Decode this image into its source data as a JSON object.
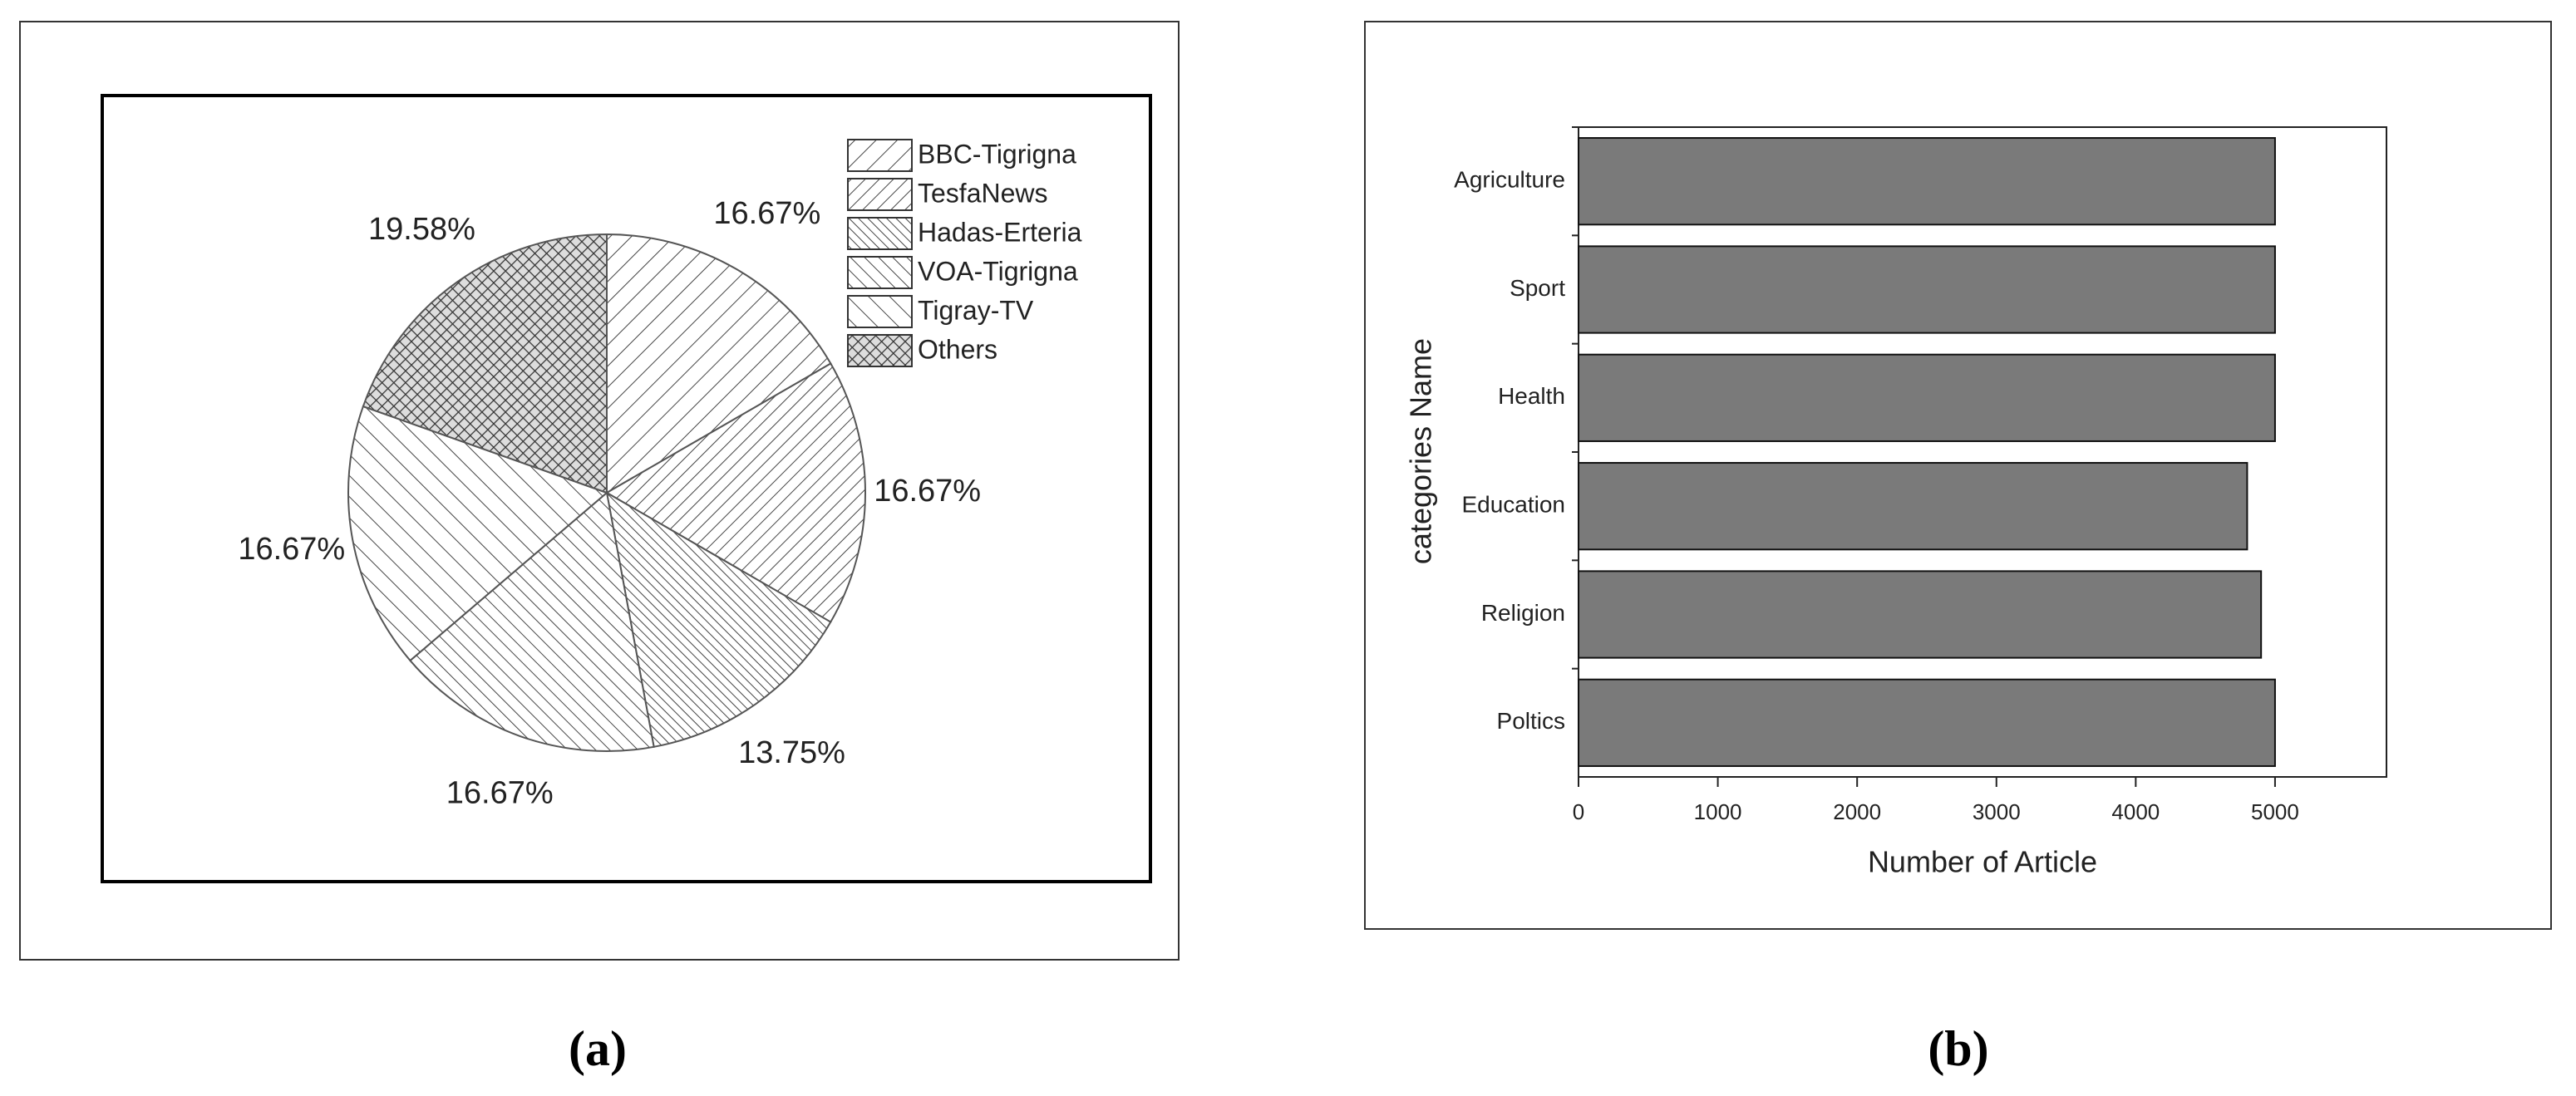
{
  "chart_data": [
    {
      "type": "pie",
      "caption": "(a)",
      "labels": [
        "BBC-Tigrigna",
        "TesfaNews",
        "Hadas-Erteria",
        "VOA-Tigrigna",
        "Tigray-TV",
        "Others"
      ],
      "values": [
        16.67,
        16.67,
        13.75,
        16.67,
        16.67,
        19.58
      ],
      "value_labels": [
        "16.67%",
        "16.67%",
        "13.75%",
        "16.67%",
        "16.67%",
        "19.58%"
      ],
      "legend": "upper right"
    },
    {
      "type": "bar",
      "orientation": "horizontal",
      "caption": "(b)",
      "categories": [
        "Agriculture",
        "Sport",
        "Health",
        "Education",
        "Religion",
        "Poltics"
      ],
      "values": [
        5000,
        5000,
        5000,
        4800,
        4900,
        5000
      ],
      "color": "#7a7a7a",
      "xlabel": "Number of Article",
      "ylabel": "categories Name",
      "xlim": [
        0,
        5800
      ],
      "xticks": [
        0,
        1000,
        2000,
        3000,
        4000,
        5000
      ],
      "grid": false
    }
  ]
}
